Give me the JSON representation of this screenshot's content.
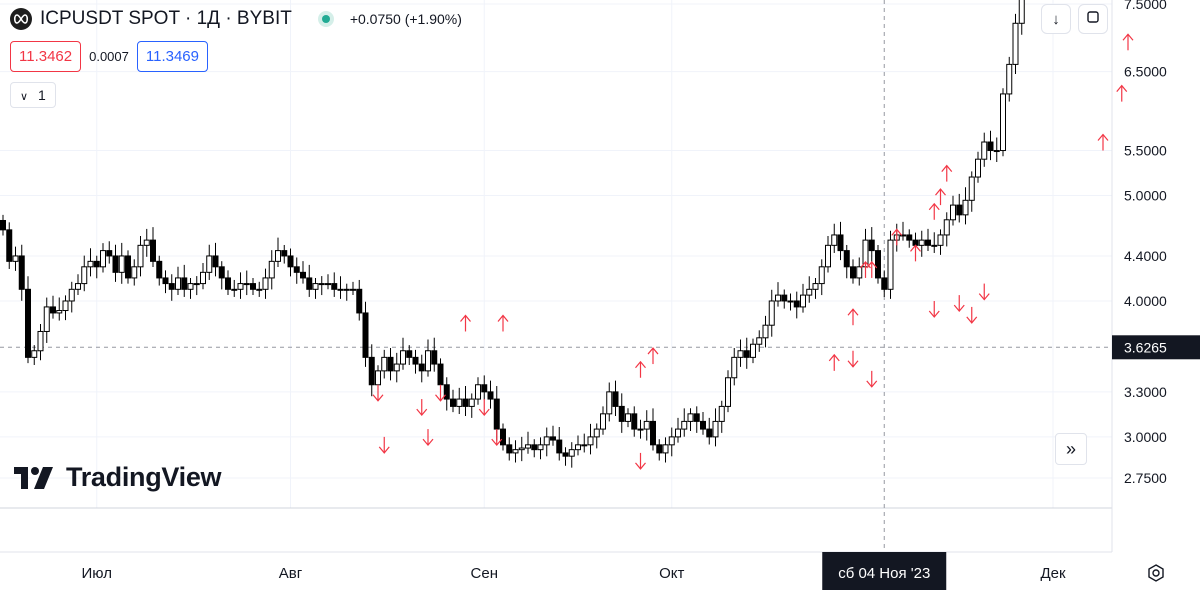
{
  "header": {
    "symbol_title": "ICPUSDT SPOT · 1Д · BYBIT",
    "change": "+0.0750 (+1.90%)",
    "symbol_icon": "icp-logo-icon"
  },
  "prices": {
    "sell": "11.3462",
    "spread": "0.0007",
    "buy": "11.3469"
  },
  "interval_button": {
    "icon": "chevron-down-icon",
    "label": "1"
  },
  "logo": {
    "text": "TradingView",
    "icon": "tradingview-logo-icon"
  },
  "colors": {
    "up": "#089981",
    "candle": "#000000",
    "signal_up": "#f23645",
    "signal_down": "#f23645",
    "bg": "#ffffff",
    "grid": "#f0f3fa"
  },
  "chart_data": {
    "type": "candlestick",
    "scale": "log",
    "y_ticks": [
      7.5,
      6.5,
      5.5,
      5.0,
      4.4,
      4.0,
      3.3,
      3.0,
      2.75
    ],
    "y_tick_labels": [
      "7.5000",
      "6.5000",
      "5.5000",
      "5.0000",
      "4.4000",
      "4.0000",
      "3.3000",
      "3.0000",
      "2.7500"
    ],
    "ylim": [
      2.6,
      7.6
    ],
    "x_labels": [
      "Июл",
      "Авг",
      "Сен",
      "Окт",
      "Дек"
    ],
    "x_label_dates": [
      "2023-07-01",
      "2023-08-01",
      "2023-09-01",
      "2023-10-01",
      "2023-12-01"
    ],
    "crosshair": {
      "date_label": "сб 04 Ноя '23",
      "date": "2023-11-04",
      "price_label": "3.6265",
      "price": 3.6265
    },
    "start_date": "2023-06-16",
    "closes": [
      4.65,
      4.35,
      4.4,
      4.1,
      3.55,
      3.6,
      3.75,
      3.95,
      3.9,
      3.92,
      4.0,
      4.1,
      4.15,
      4.3,
      4.35,
      4.3,
      4.45,
      4.4,
      4.25,
      4.4,
      4.2,
      4.3,
      4.5,
      4.55,
      4.35,
      4.2,
      4.15,
      4.1,
      4.2,
      4.1,
      4.15,
      4.15,
      4.25,
      4.4,
      4.3,
      4.2,
      4.1,
      4.1,
      4.15,
      4.15,
      4.1,
      4.1,
      4.2,
      4.35,
      4.45,
      4.4,
      4.3,
      4.25,
      4.2,
      4.1,
      4.15,
      4.15,
      4.15,
      4.1,
      4.1,
      4.1,
      4.1,
      3.9,
      3.55,
      3.35,
      3.45,
      3.55,
      3.45,
      3.5,
      3.6,
      3.55,
      3.5,
      3.45,
      3.6,
      3.5,
      3.35,
      3.25,
      3.2,
      3.25,
      3.2,
      3.25,
      3.35,
      3.3,
      3.25,
      3.05,
      2.95,
      2.9,
      2.92,
      2.93,
      2.95,
      2.92,
      2.95,
      3.0,
      2.98,
      2.9,
      2.88,
      2.92,
      2.95,
      2.95,
      3.0,
      3.05,
      3.15,
      3.3,
      3.2,
      3.1,
      3.15,
      3.05,
      3.05,
      3.1,
      2.95,
      2.9,
      2.95,
      3.0,
      3.05,
      3.1,
      3.15,
      3.1,
      3.05,
      3.0,
      3.1,
      3.2,
      3.4,
      3.55,
      3.6,
      3.55,
      3.65,
      3.7,
      3.8,
      4.0,
      4.05,
      4.0,
      4.0,
      3.95,
      4.05,
      4.1,
      4.15,
      4.3,
      4.5,
      4.6,
      4.45,
      4.3,
      4.2,
      4.3,
      4.55,
      4.45,
      4.2,
      4.1,
      4.55,
      4.6,
      4.6,
      4.55,
      4.5,
      4.55,
      4.5,
      4.5,
      4.6,
      4.75,
      4.9,
      4.8,
      4.95,
      5.2,
      5.4,
      5.6,
      5.5,
      5.5,
      6.2,
      6.6,
      7.2,
      7.7
    ],
    "signals_up": [
      {
        "date": "2023-08-29",
        "price": 3.75
      },
      {
        "date": "2023-09-04",
        "price": 3.75
      },
      {
        "date": "2023-09-26",
        "price": 3.4
      },
      {
        "date": "2023-09-28",
        "price": 3.5
      },
      {
        "date": "2023-10-27",
        "price": 3.45
      },
      {
        "date": "2023-10-30",
        "price": 3.8
      },
      {
        "date": "2023-11-01",
        "price": 4.2
      },
      {
        "date": "2023-11-02",
        "price": 4.2
      },
      {
        "date": "2023-11-06",
        "price": 4.5
      },
      {
        "date": "2023-11-09",
        "price": 4.35
      },
      {
        "date": "2023-11-12",
        "price": 4.75
      },
      {
        "date": "2023-11-13",
        "price": 4.9
      },
      {
        "date": "2023-11-14",
        "price": 5.15
      },
      {
        "date": "2023-12-09",
        "price": 5.5
      },
      {
        "date": "2023-12-12",
        "price": 6.1
      },
      {
        "date": "2023-12-13",
        "price": 6.8
      }
    ],
    "signals_down": [
      {
        "date": "2023-08-15",
        "price": 3.35
      },
      {
        "date": "2023-08-16",
        "price": 3.0
      },
      {
        "date": "2023-08-22",
        "price": 3.25
      },
      {
        "date": "2023-08-23",
        "price": 3.05
      },
      {
        "date": "2023-08-25",
        "price": 3.35
      },
      {
        "date": "2023-09-01",
        "price": 3.25
      },
      {
        "date": "2023-09-03",
        "price": 3.05
      },
      {
        "date": "2023-09-26",
        "price": 2.9
      },
      {
        "date": "2023-10-30",
        "price": 3.6
      },
      {
        "date": "2023-11-02",
        "price": 3.45
      },
      {
        "date": "2023-11-12",
        "price": 4.0
      },
      {
        "date": "2023-11-16",
        "price": 4.05
      },
      {
        "date": "2023-11-18",
        "price": 3.95
      },
      {
        "date": "2023-11-20",
        "price": 4.15
      }
    ]
  }
}
